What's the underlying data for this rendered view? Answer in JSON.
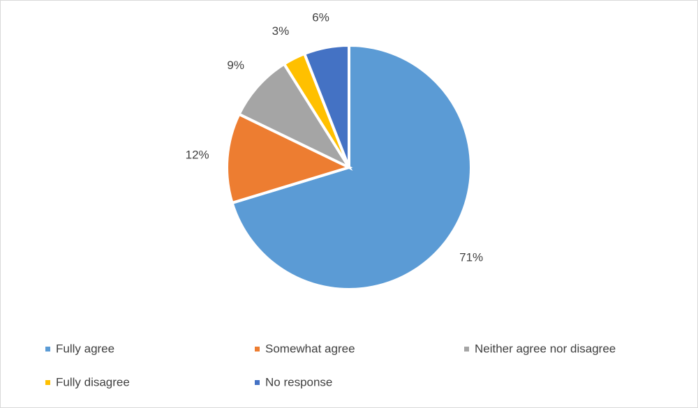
{
  "chart_data": {
    "type": "pie",
    "categories": [
      "Fully agree",
      "Somewhat agree",
      "Neither agree nor disagree",
      "Fully disagree",
      "No response"
    ],
    "values": [
      71,
      12,
      9,
      3,
      6
    ],
    "value_labels": [
      "71%",
      "12%",
      "9%",
      "3%",
      "6%"
    ],
    "colors": [
      "#5b9bd5",
      "#ed7d31",
      "#a5a5a5",
      "#ffc000",
      "#4472c4"
    ],
    "legend": "bottom"
  }
}
